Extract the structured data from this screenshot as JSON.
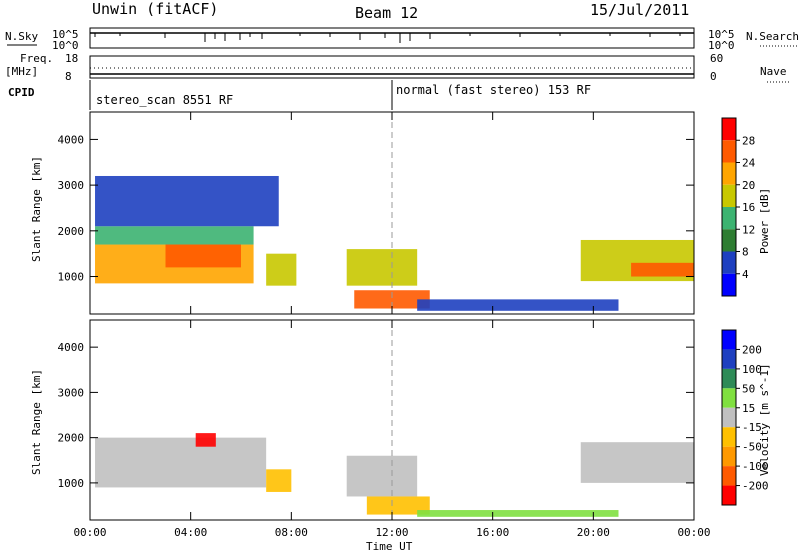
{
  "header": {
    "title_left": "Unwin (fitACF)",
    "title_center": "Beam 12",
    "title_right": "15/Jul/2011"
  },
  "aux": {
    "nsky_label": "N.Sky",
    "nsearch_label": "N.Search",
    "nsky_ticks": [
      "10^5",
      "10^0"
    ],
    "freq_label": "Freq.",
    "freq_unit": "[MHz]",
    "freq_ticks": [
      "18",
      "8"
    ],
    "nave_label": "Nave",
    "nave_ticks": [
      "60",
      "0"
    ],
    "cpid_label": "CPID",
    "modes": [
      {
        "label": "stereo_scan 8551 RF",
        "start_hour": 0
      },
      {
        "label": "normal (fast stereo) 153 RF",
        "start_hour": 12
      }
    ]
  },
  "axes": {
    "xlabel": "Time UT",
    "x_ticks": [
      "00:00",
      "04:00",
      "08:00",
      "12:00",
      "16:00",
      "20:00",
      "00:00"
    ],
    "ylabel": "Slant Range [km]",
    "y_ticks": [
      "1000",
      "2000",
      "3000",
      "4000"
    ]
  },
  "chart_data": [
    {
      "type": "heatmap",
      "title": "",
      "xlabel": "Time UT",
      "ylabel": "Slant Range [km]",
      "xlim": [
        0,
        24
      ],
      "ylim": [
        180,
        4600
      ],
      "colorbar": {
        "label": "Power [dB]",
        "ticks": [
          "28",
          "24",
          "20",
          "16",
          "12",
          "8",
          "4"
        ],
        "range": [
          0,
          32
        ],
        "colors": [
          "#0000ff",
          "#1e40c0",
          "#2e7d32",
          "#3cb371",
          "#c8c800",
          "#ffa500",
          "#ff5a00",
          "#ff0000"
        ]
      },
      "regions": [
        {
          "t_start": 0.2,
          "t_end": 6.5,
          "r_start": 850,
          "r_end": 1700,
          "value": 22
        },
        {
          "t_start": 0.2,
          "t_end": 6.5,
          "r_start": 1700,
          "r_end": 2100,
          "value": 14
        },
        {
          "t_start": 0.2,
          "t_end": 7.5,
          "r_start": 2100,
          "r_end": 3200,
          "value": 6
        },
        {
          "t_start": 3.0,
          "t_end": 6.0,
          "r_start": 1200,
          "r_end": 1700,
          "value": 26
        },
        {
          "t_start": 7.0,
          "t_end": 8.2,
          "r_start": 800,
          "r_end": 1500,
          "value": 16
        },
        {
          "t_start": 10.2,
          "t_end": 13.0,
          "r_start": 800,
          "r_end": 1600,
          "value": 18
        },
        {
          "t_start": 10.5,
          "t_end": 13.5,
          "r_start": 300,
          "r_end": 700,
          "value": 26
        },
        {
          "t_start": 13.0,
          "t_end": 21.0,
          "r_start": 250,
          "r_end": 500,
          "value": 6
        },
        {
          "t_start": 19.5,
          "t_end": 24.0,
          "r_start": 900,
          "r_end": 1800,
          "value": 18
        },
        {
          "t_start": 21.5,
          "t_end": 24.0,
          "r_start": 1000,
          "r_end": 1300,
          "value": 25
        }
      ]
    },
    {
      "type": "heatmap",
      "title": "",
      "xlabel": "Time UT",
      "ylabel": "Slant Range [km]",
      "xlim": [
        0,
        24
      ],
      "ylim": [
        180,
        4600
      ],
      "colorbar": {
        "label": "Velocity [m s^-1]",
        "ticks": [
          "200",
          "100",
          "50",
          "15",
          "-15",
          "-50",
          "-100",
          "-200"
        ],
        "range": [
          -250,
          250
        ],
        "colors": [
          "#ff0000",
          "#ff5a00",
          "#ff9900",
          "#ffc000",
          "#c0c0c0",
          "#80e040",
          "#2e8b57",
          "#1e40c0",
          "#0000ff"
        ]
      },
      "regions": [
        {
          "t_start": 0.2,
          "t_end": 7.0,
          "r_start": 900,
          "r_end": 2000,
          "value": 0
        },
        {
          "t_start": 4.2,
          "t_end": 5.0,
          "r_start": 1800,
          "r_end": 2100,
          "value": -200
        },
        {
          "t_start": 7.0,
          "t_end": 8.0,
          "r_start": 800,
          "r_end": 1300,
          "value": -60
        },
        {
          "t_start": 10.2,
          "t_end": 13.0,
          "r_start": 700,
          "r_end": 1600,
          "value": 0
        },
        {
          "t_start": 11.0,
          "t_end": 13.5,
          "r_start": 300,
          "r_end": 700,
          "value": -60
        },
        {
          "t_start": 13.0,
          "t_end": 21.0,
          "r_start": 250,
          "r_end": 400,
          "value": 40
        },
        {
          "t_start": 19.5,
          "t_end": 24.0,
          "r_start": 1000,
          "r_end": 1900,
          "value": 0
        }
      ]
    }
  ]
}
